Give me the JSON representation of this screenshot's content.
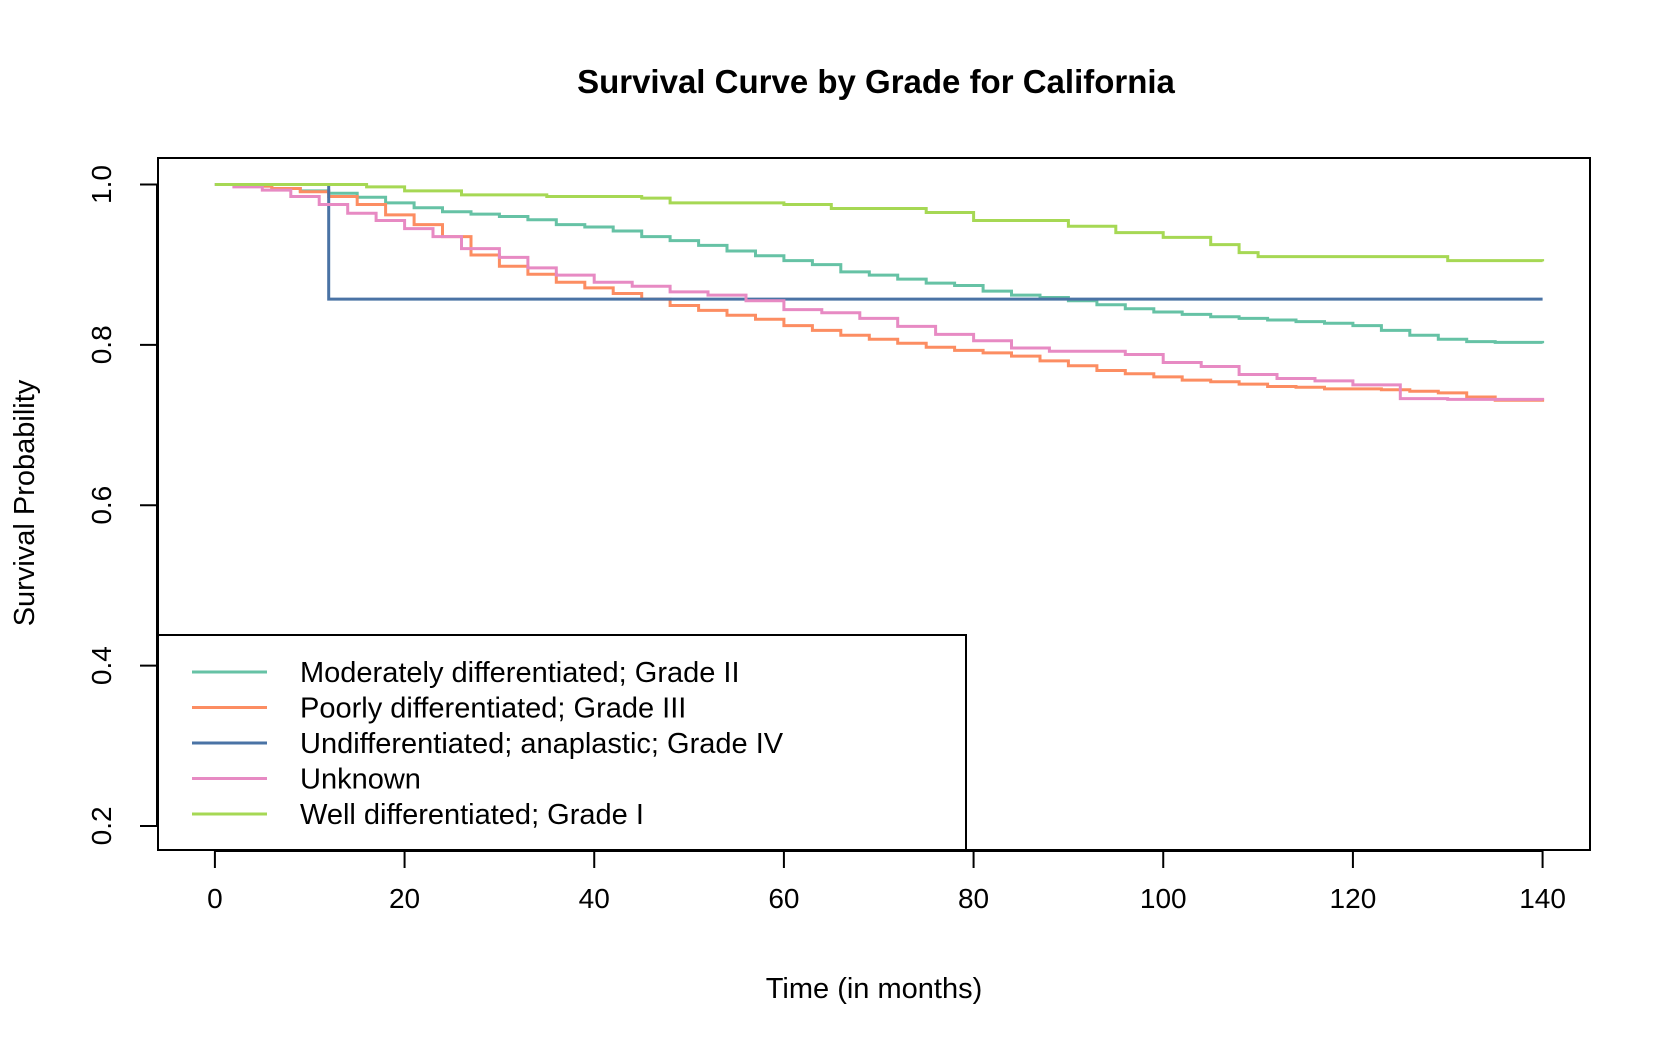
{
  "chart_data": {
    "type": "line",
    "step": true,
    "title": "Survival Curve by Grade for California",
    "xlabel": "Time (in months)",
    "ylabel": "Survival Probability",
    "xlim": [
      -6,
      145
    ],
    "ylim": [
      0.17,
      1.033
    ],
    "xticks": [
      0,
      20,
      40,
      60,
      80,
      100,
      120,
      140
    ],
    "yticks": [
      0.2,
      0.4,
      0.6,
      0.8,
      1.0
    ],
    "xtick_labels": [
      "0",
      "20",
      "40",
      "60",
      "80",
      "100",
      "120",
      "140"
    ],
    "ytick_labels": [
      "0.2",
      "0.4",
      "0.6",
      "0.8",
      "1.0"
    ],
    "grid": false,
    "legend_position": "bottom-left",
    "series": [
      {
        "name": "Moderately differentiated; Grade II",
        "color": "#66c2a5",
        "x": [
          0,
          3,
          6,
          9,
          12,
          15,
          18,
          21,
          24,
          27,
          30,
          33,
          36,
          39,
          42,
          45,
          48,
          51,
          54,
          57,
          60,
          63,
          66,
          69,
          72,
          75,
          78,
          81,
          84,
          87,
          90,
          93,
          96,
          99,
          102,
          105,
          108,
          111,
          114,
          117,
          120,
          123,
          126,
          129,
          132,
          135,
          140
        ],
        "y": [
          1.0,
          0.998,
          0.995,
          0.992,
          0.989,
          0.984,
          0.977,
          0.971,
          0.966,
          0.963,
          0.96,
          0.956,
          0.95,
          0.947,
          0.942,
          0.935,
          0.93,
          0.924,
          0.917,
          0.911,
          0.905,
          0.9,
          0.891,
          0.887,
          0.882,
          0.877,
          0.874,
          0.867,
          0.862,
          0.859,
          0.855,
          0.85,
          0.845,
          0.841,
          0.838,
          0.835,
          0.833,
          0.831,
          0.829,
          0.827,
          0.824,
          0.818,
          0.812,
          0.807,
          0.804,
          0.803,
          0.802
        ]
      },
      {
        "name": "Poorly differentiated; Grade III",
        "color": "#fc8d62",
        "x": [
          0,
          3,
          6,
          9,
          12,
          15,
          18,
          21,
          24,
          27,
          30,
          33,
          36,
          39,
          42,
          45,
          48,
          51,
          54,
          57,
          60,
          63,
          66,
          69,
          72,
          75,
          78,
          81,
          84,
          87,
          90,
          93,
          96,
          99,
          102,
          105,
          108,
          111,
          114,
          117,
          120,
          123,
          126,
          129,
          132,
          135,
          140
        ],
        "y": [
          1.0,
          0.998,
          0.995,
          0.991,
          0.985,
          0.975,
          0.962,
          0.95,
          0.935,
          0.912,
          0.898,
          0.888,
          0.878,
          0.871,
          0.864,
          0.857,
          0.849,
          0.843,
          0.837,
          0.832,
          0.824,
          0.818,
          0.812,
          0.807,
          0.802,
          0.797,
          0.793,
          0.79,
          0.786,
          0.78,
          0.774,
          0.768,
          0.764,
          0.76,
          0.756,
          0.754,
          0.751,
          0.748,
          0.747,
          0.745,
          0.745,
          0.744,
          0.742,
          0.74,
          0.735,
          0.731,
          0.729
        ]
      },
      {
        "name": "Undifferentiated; anaplastic; Grade IV",
        "color": "#4a73a5",
        "x": [
          0,
          12,
          140
        ],
        "y": [
          1.0,
          0.857,
          0.857
        ]
      },
      {
        "name": "Unknown",
        "color": "#e78ac3",
        "x": [
          0,
          2,
          5,
          8,
          11,
          14,
          17,
          20,
          23,
          26,
          30,
          33,
          36,
          40,
          44,
          48,
          52,
          56,
          60,
          64,
          68,
          72,
          76,
          80,
          84,
          88,
          92,
          96,
          100,
          104,
          108,
          112,
          116,
          120,
          125,
          130,
          140
        ],
        "y": [
          1.0,
          0.997,
          0.993,
          0.985,
          0.975,
          0.964,
          0.955,
          0.945,
          0.935,
          0.92,
          0.909,
          0.896,
          0.887,
          0.878,
          0.873,
          0.866,
          0.862,
          0.855,
          0.844,
          0.84,
          0.833,
          0.823,
          0.813,
          0.805,
          0.796,
          0.792,
          0.792,
          0.788,
          0.778,
          0.773,
          0.763,
          0.758,
          0.755,
          0.75,
          0.733,
          0.732,
          0.731
        ]
      },
      {
        "name": "Well differentiated; Grade I",
        "color": "#a6d854",
        "x": [
          0,
          16,
          20,
          26,
          35,
          45,
          48,
          60,
          65,
          75,
          80,
          90,
          95,
          100,
          105,
          108,
          110,
          120,
          130,
          140
        ],
        "y": [
          1.0,
          0.997,
          0.992,
          0.987,
          0.985,
          0.983,
          0.977,
          0.975,
          0.97,
          0.965,
          0.955,
          0.948,
          0.94,
          0.934,
          0.925,
          0.915,
          0.91,
          0.91,
          0.905,
          0.904
        ]
      }
    ]
  }
}
